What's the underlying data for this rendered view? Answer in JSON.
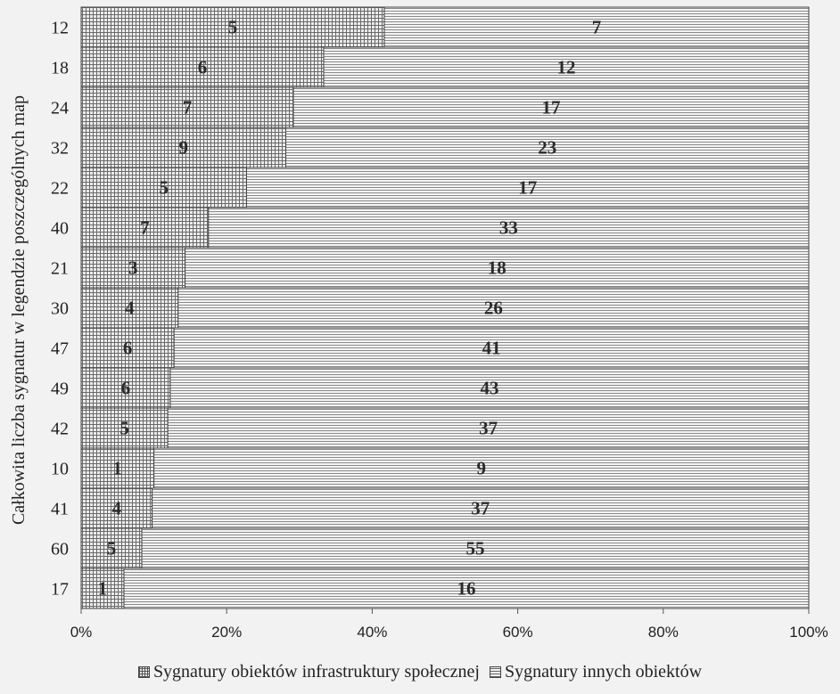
{
  "chart_data": {
    "type": "bar",
    "orientation": "horizontal",
    "stacking": "percent",
    "ylabel": "Całkowita liczba sygnatur w legendzie poszczególnych map",
    "xlabel": "",
    "xlim": [
      0,
      100
    ],
    "xticks": [
      "0%",
      "20%",
      "40%",
      "60%",
      "80%",
      "100%"
    ],
    "categories": [
      "12",
      "18",
      "24",
      "32",
      "22",
      "40",
      "21",
      "30",
      "47",
      "49",
      "42",
      "10",
      "41",
      "60",
      "17"
    ],
    "series": [
      {
        "name": "Sygnatury obiektów infrastruktury społecznej",
        "values": [
          5,
          6,
          7,
          9,
          5,
          7,
          3,
          4,
          6,
          6,
          5,
          1,
          4,
          5,
          1
        ],
        "pattern": "grid"
      },
      {
        "name": "Sygnatury innych obiektów",
        "values": [
          7,
          12,
          17,
          23,
          17,
          33,
          18,
          26,
          41,
          43,
          37,
          9,
          37,
          55,
          16
        ],
        "pattern": "horizontal-lines"
      }
    ],
    "legend_position": "bottom",
    "grid": false
  }
}
